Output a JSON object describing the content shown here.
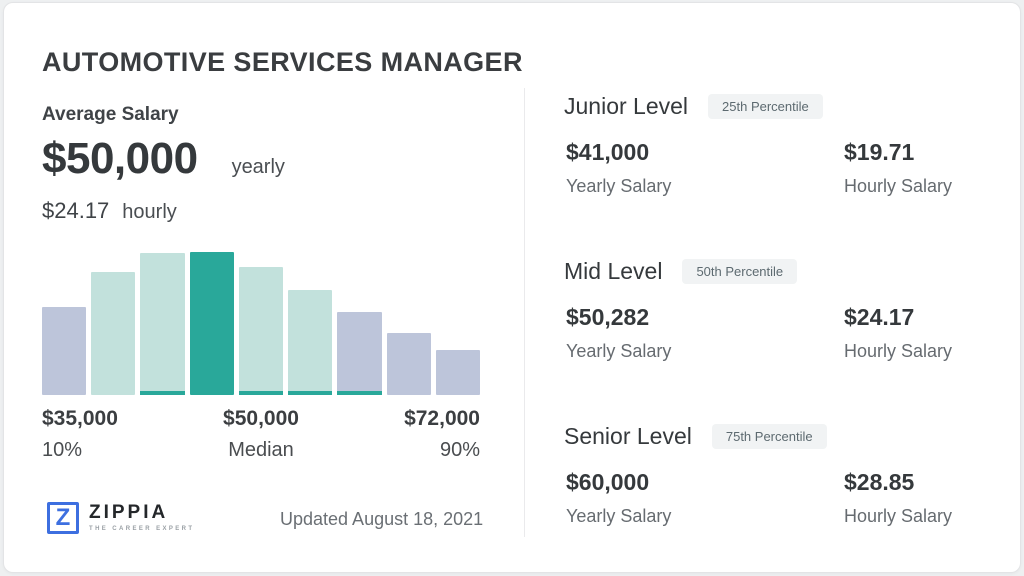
{
  "page": {
    "title": "AUTOMOTIVE SERVICES MANAGER",
    "updated": "Updated August 18, 2021"
  },
  "average": {
    "label": "Average Salary",
    "yearly_value": "$50,000",
    "yearly_unit": "yearly",
    "hourly_value": "$24.17",
    "hourly_unit": "hourly"
  },
  "chart_data": {
    "type": "bar",
    "title": "Salary distribution histogram",
    "grid": false,
    "legend": "none",
    "ylim": [
      0,
      1
    ],
    "bars": [
      {
        "rel_height": 0.615,
        "color": "periwinkle",
        "base_strip": false
      },
      {
        "rel_height": 0.86,
        "color": "light_teal",
        "base_strip": false
      },
      {
        "rel_height": 0.993,
        "color": "light_teal",
        "base_strip": true
      },
      {
        "rel_height": 1.0,
        "color": "teal",
        "base_strip": false
      },
      {
        "rel_height": 0.895,
        "color": "light_teal",
        "base_strip": true
      },
      {
        "rel_height": 0.734,
        "color": "light_teal",
        "base_strip": true
      },
      {
        "rel_height": 0.58,
        "color": "periwinkle",
        "base_strip": true
      },
      {
        "rel_height": 0.434,
        "color": "periwinkle",
        "base_strip": false
      },
      {
        "rel_height": 0.315,
        "color": "periwinkle",
        "base_strip": false
      }
    ],
    "colors": {
      "periwinkle": "#bdc5da",
      "light_teal": "#c2e1dc",
      "teal": "#29a89a"
    },
    "x_labels": [
      {
        "value": "$35,000",
        "sub": "10%"
      },
      {
        "value": "$50,000",
        "sub": "Median"
      },
      {
        "value": "$72,000",
        "sub": "90%"
      }
    ]
  },
  "levels": [
    {
      "name": "Junior Level",
      "badge": "25th Percentile",
      "yearly_value": "$41,000",
      "yearly_label": "Yearly Salary",
      "hourly_value": "$19.71",
      "hourly_label": "Hourly Salary"
    },
    {
      "name": "Mid Level",
      "badge": "50th Percentile",
      "yearly_value": "$50,282",
      "yearly_label": "Yearly Salary",
      "hourly_value": "$24.17",
      "hourly_label": "Hourly Salary"
    },
    {
      "name": "Senior Level",
      "badge": "75th Percentile",
      "yearly_value": "$60,000",
      "yearly_label": "Yearly Salary",
      "hourly_value": "$28.85",
      "hourly_label": "Hourly Salary"
    }
  ],
  "logo": {
    "letter": "Z",
    "brand": "ZIPPIA",
    "tagline": "THE CAREER EXPERT",
    "accent": "#3d6fe0"
  }
}
